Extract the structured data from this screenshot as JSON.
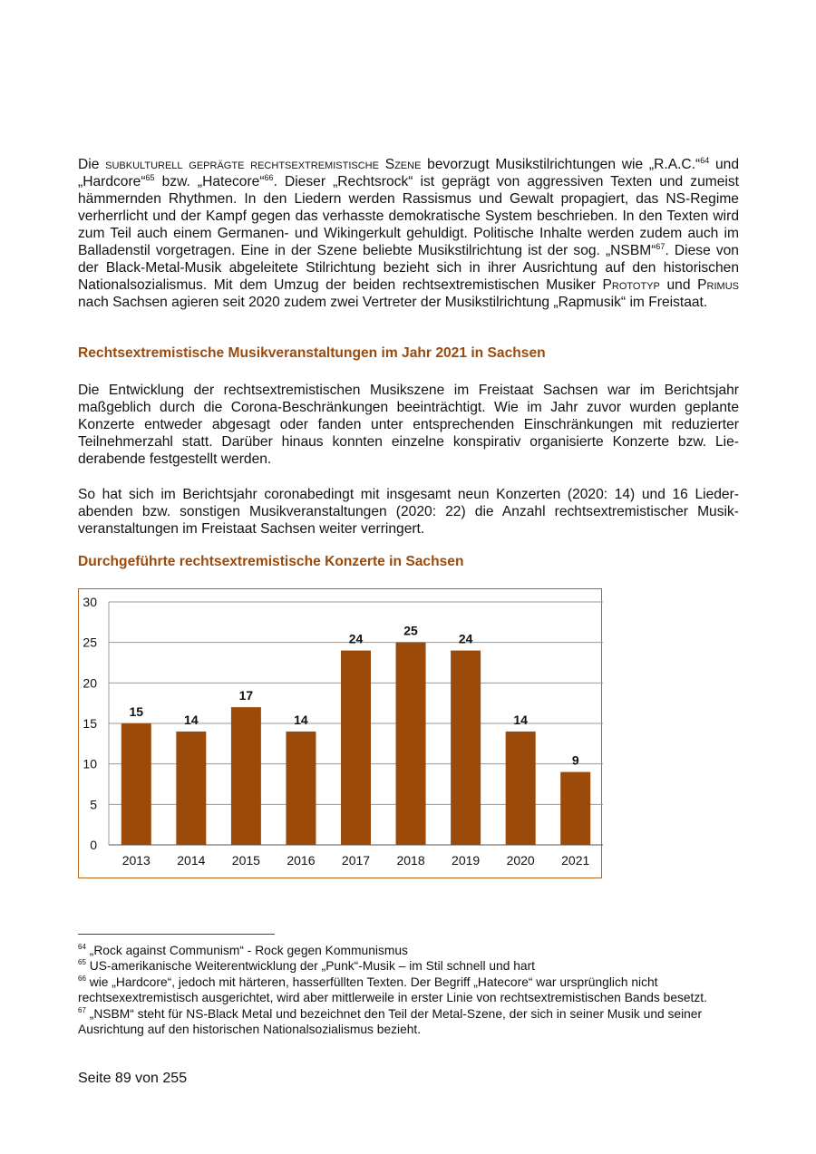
{
  "paragraph1": {
    "s1": "Die ",
    "sc1": "subkulturell geprägte rechtsextremistische Szene",
    "s2": " bevorzugt Musikstilrichtungen wie „R.A.C.“",
    "fn64": "64",
    "s3": " und „Hardcore“",
    "fn65": "65",
    "s4": " bzw. „Hatecore“",
    "fn66": "66",
    "s5": ". Dieser „Rechtsrock“ ist geprägt von aggressiven Texten und zumeist hämmernden Rhythmen. In den Liedern werden Rassismus und Gewalt propagiert, das NS-Regime verherrlicht und der Kampf gegen das verhasste demokratische System beschrieben. In den Texten wird zum Teil auch einem Germanen- und Wikingerkult gehuldigt. Politische Inhalte werden zudem auch im Balladenstil vorgetragen. Eine in der Szene beliebte Musikstilrichtung ist der sog. „NSBM“",
    "fn67": "67",
    "s6": ". Diese von der Black-Metal-Musik abgeleitete Stilrichtung bezieht sich in ihrer Ausrichtung auf den historischen Nationalsozialismus. Mit dem Umzug der beiden rechtsextremistischen Musiker ",
    "sc2": "Prototyp",
    "s7": " und ",
    "sc3": "Primus",
    "s8": " nach Sachsen agieren seit 2020 zudem zwei Vertreter der Musikstilrichtung „Rapmusik“ im Freistaat."
  },
  "heading1": "Rechtsextremistische Musikveranstaltungen im Jahr 2021 in Sachsen",
  "paragraph2": "Die Entwicklung der rechtsextremistischen Musikszene im Freistaat Sachsen war im Berichtsjahr maßgeblich durch die Corona-Beschränkungen beeinträchtigt. Wie im Jahr zuvor wurden geplante Konzerte entweder abgesagt oder fanden unter entsprechenden Einschränkungen mit reduzierter Teilnehmerzahl statt. Darüber hinaus konnten einzelne konspirativ organisierte Konzerte bzw. Lie­derabende festgestellt werden.",
  "paragraph3": "So hat sich im Berichtsjahr coronabedingt mit insgesamt neun Konzerten (2020: 14) und 16 Lieder­abenden bzw. sonstigen Musikveranstaltungen (2020: 22) die Anzahl rechtsextremistischer Musik­veranstaltungen im Freistaat Sachsen weiter verringert.",
  "chart_data": {
    "type": "bar",
    "title": "Durchgeführte rechtsextremistische Konzerte in Sachsen",
    "categories": [
      "2013",
      "2014",
      "2015",
      "2016",
      "2017",
      "2018",
      "2019",
      "2020",
      "2021"
    ],
    "values": [
      15,
      14,
      17,
      14,
      24,
      25,
      24,
      14,
      9
    ],
    "xlabel": "",
    "ylabel": "",
    "ylim": [
      0,
      30
    ],
    "yticks": [
      0,
      5,
      10,
      15,
      20,
      25,
      30
    ],
    "grid": true,
    "data_labels": true,
    "bar_color": "#9b4a0a",
    "border_color": "#b5651d"
  },
  "footnotes": [
    {
      "num": "64",
      "text": " „Rock against Communism“ - Rock gegen Kommunismus"
    },
    {
      "num": "65",
      "text": " US-amerikanische Weiterentwicklung der „Punk“-Musik – im Stil schnell und hart"
    },
    {
      "num": "66",
      "text": " wie „Hardcore“, jedoch mit härteren, hasserfüllten Texten. Der Begriff „Hatecore“ war ursprünglich nicht rechtsexextremistisch ausgerichtet, wird aber mittlerweile in erster Linie von rechtsextremistischen Bands besetzt."
    },
    {
      "num": "67",
      "text": " „NSBM“ steht für NS-Black Metal und bezeichnet den Teil der Metal-Szene, der sich in seiner Musik und seiner Ausrichtung auf den historischen Nationalsozialismus bezieht."
    }
  ],
  "page_number": "Seite 89 von 255"
}
